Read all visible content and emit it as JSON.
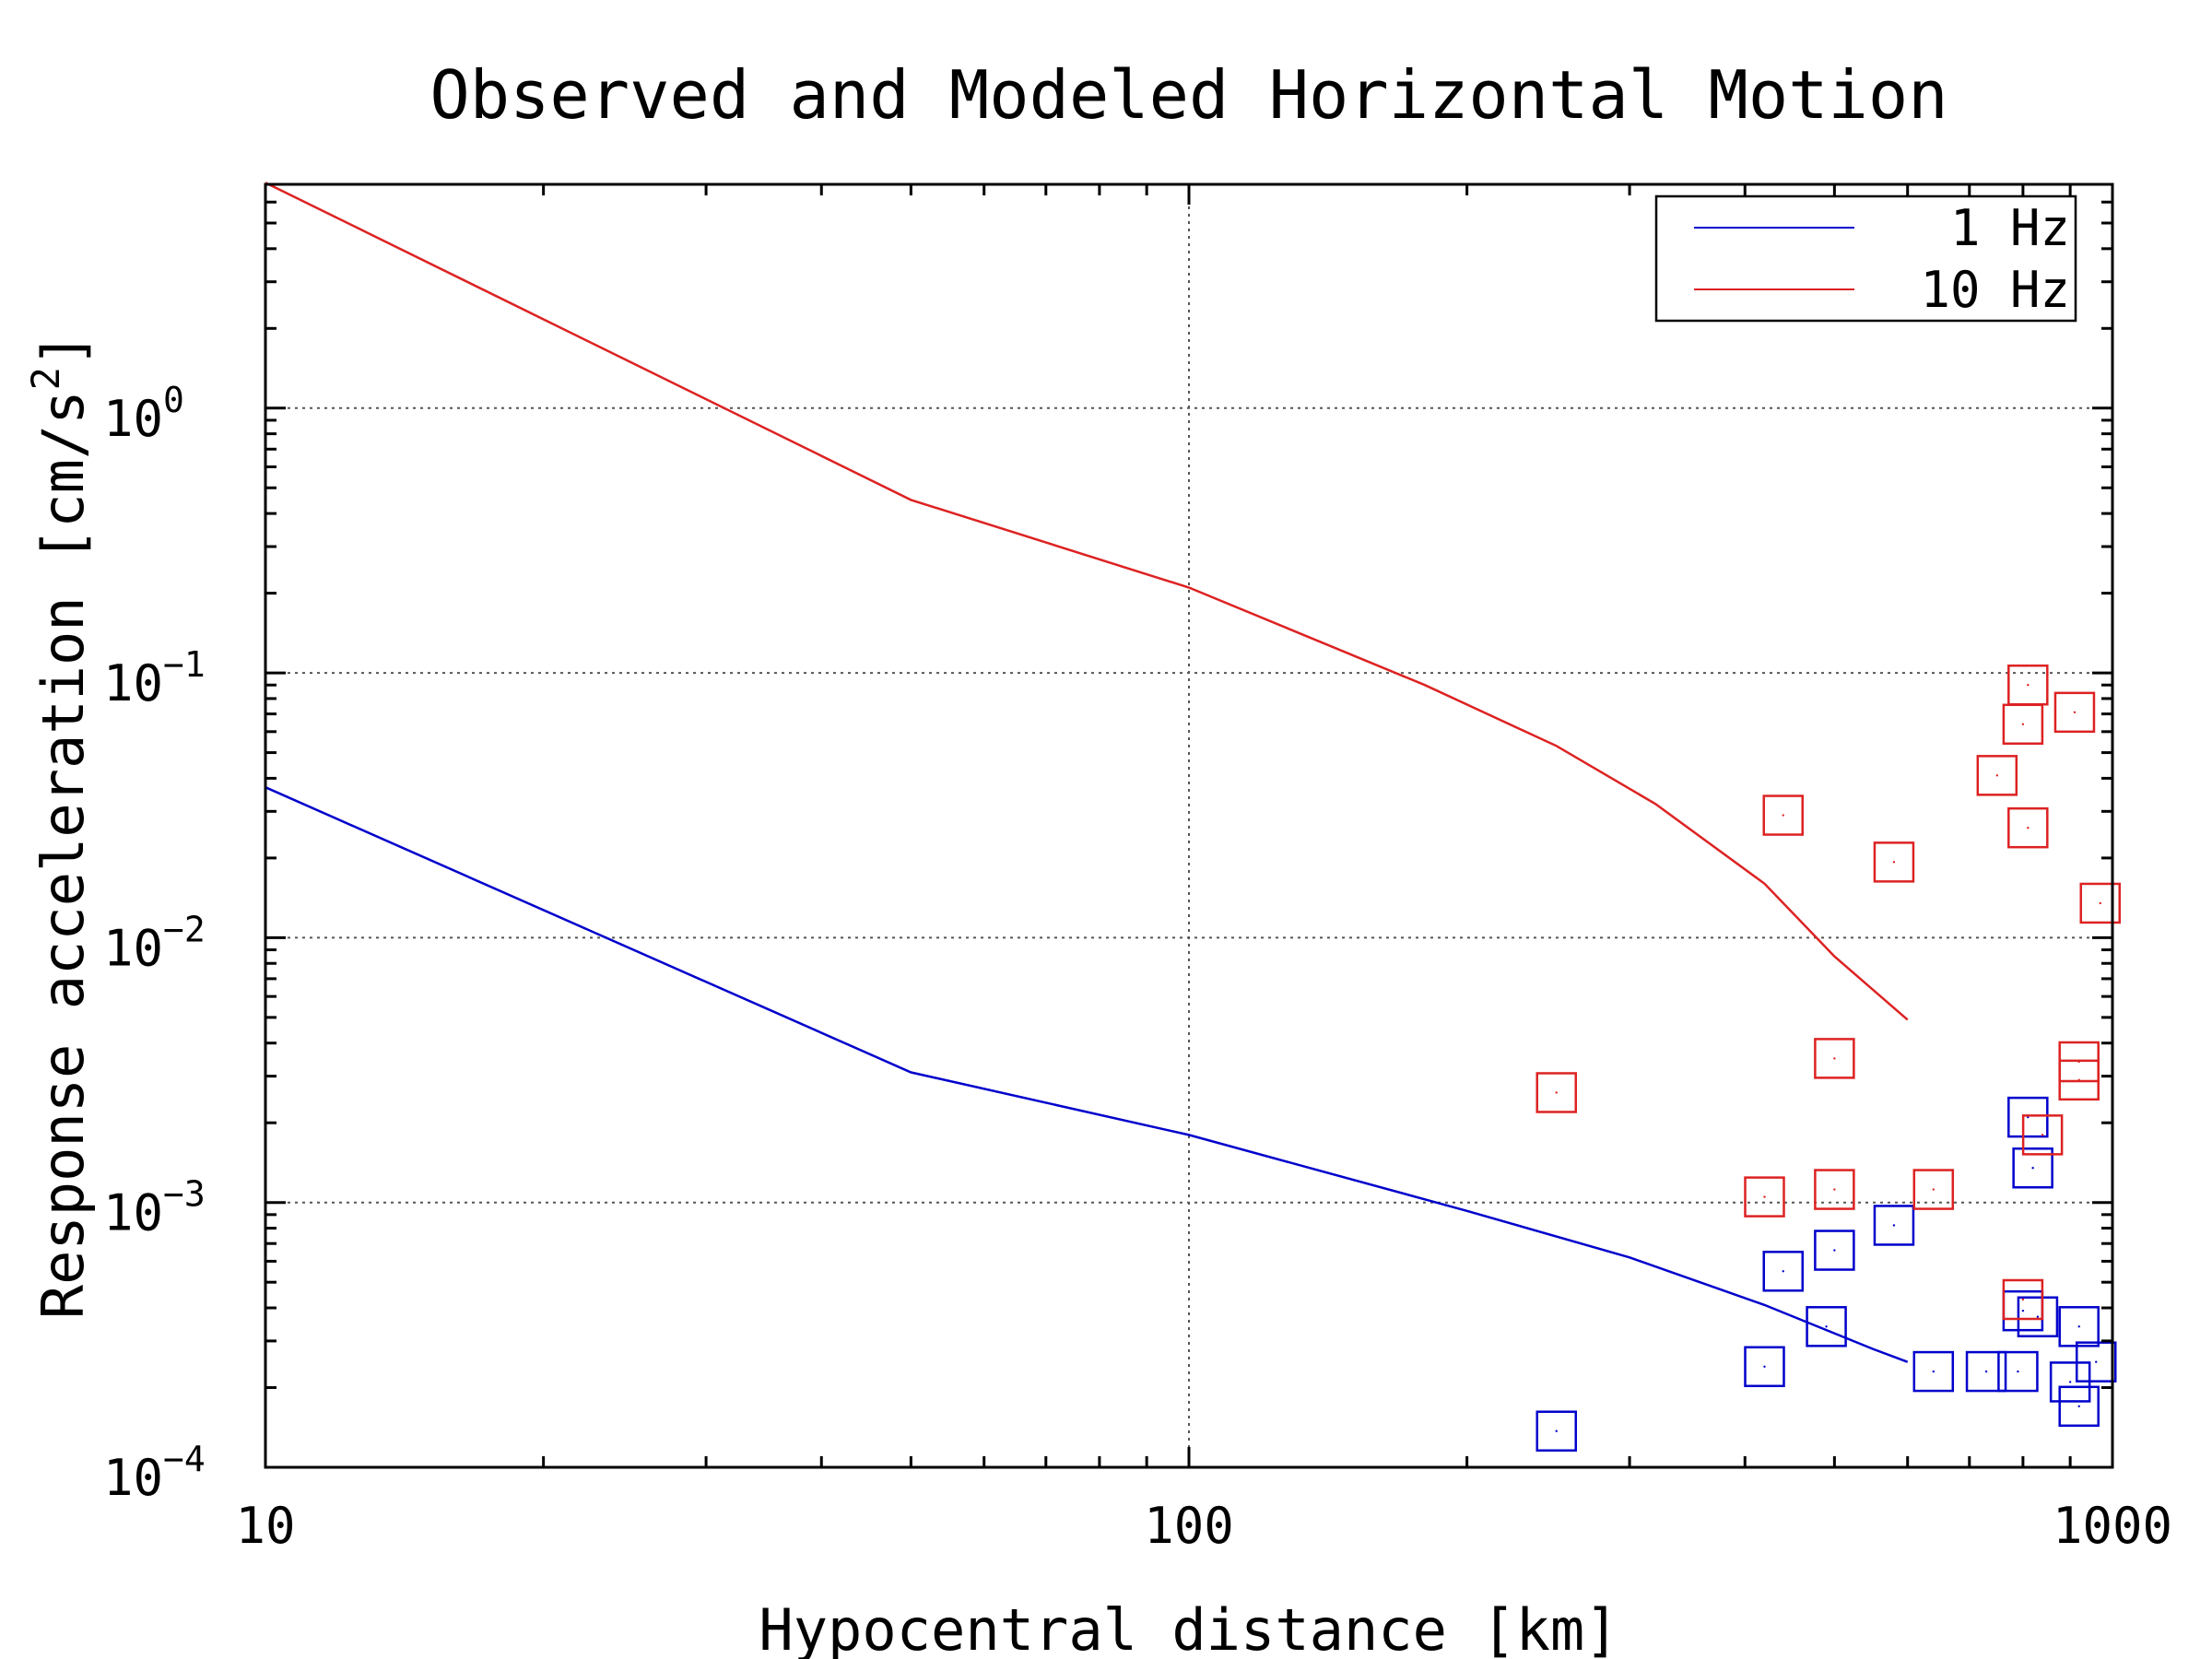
{
  "chart_data": {
    "type": "scatter",
    "title": "Observed and Modeled Horizontal Motion",
    "xlabel": "Hypocentral distance [km]",
    "ylabel_main": "Response acceleration [cm/s",
    "ylabel_sup": "2",
    "ylabel_end": "]",
    "x_scale": "log",
    "y_scale": "log",
    "xlim": [
      10,
      1000
    ],
    "ylim": [
      0.0001,
      7
    ],
    "grid": true,
    "legend_position": "top-right",
    "x_ticks": [
      {
        "value": 10,
        "label": "10"
      },
      {
        "value": 100,
        "label": "100"
      },
      {
        "value": 1000,
        "label": "1000"
      }
    ],
    "y_ticks": [
      {
        "value": 1,
        "base": "10",
        "exp": "0"
      },
      {
        "value": 0.1,
        "base": "10",
        "exp": "−1"
      },
      {
        "value": 0.01,
        "base": "10",
        "exp": "−2"
      },
      {
        "value": 0.001,
        "base": "10",
        "exp": "−3"
      },
      {
        "value": 0.0001,
        "base": "10",
        "exp": "−4"
      }
    ],
    "series": [
      {
        "name": "1 Hz",
        "color": "#0000cc",
        "model_curve": [
          [
            10,
            0.037
          ],
          [
            50,
            0.0031
          ],
          [
            100,
            0.0018
          ],
          [
            200,
            0.00093
          ],
          [
            300,
            0.00062
          ],
          [
            420,
            0.00041
          ],
          [
            550,
            0.00028
          ],
          [
            600,
            0.00025
          ]
        ],
        "observed": [
          [
            250,
            0.000137
          ],
          [
            420,
            0.00024
          ],
          [
            440,
            0.00055
          ],
          [
            490,
            0.00034
          ],
          [
            500,
            0.00066
          ],
          [
            580,
            0.00082
          ],
          [
            640,
            0.00023
          ],
          [
            730,
            0.00023
          ],
          [
            790,
            0.00023
          ],
          [
            810,
            0.0021
          ],
          [
            820,
            0.00135
          ],
          [
            830,
            0.00037
          ],
          [
            800,
            0.00039
          ],
          [
            900,
            0.00021
          ],
          [
            920,
            0.00017
          ],
          [
            920,
            0.00034
          ],
          [
            960,
            0.00025
          ]
        ]
      },
      {
        "name": "10 Hz",
        "color": "#dd2222",
        "model_curve": [
          [
            10,
            7.1
          ],
          [
            50,
            0.45
          ],
          [
            100,
            0.21
          ],
          [
            180,
            0.09
          ],
          [
            250,
            0.053
          ],
          [
            320,
            0.032
          ],
          [
            420,
            0.016
          ],
          [
            500,
            0.0085
          ],
          [
            600,
            0.0049
          ]
        ],
        "observed": [
          [
            250,
            0.0026
          ],
          [
            420,
            0.00105
          ],
          [
            440,
            0.029
          ],
          [
            500,
            0.0035
          ],
          [
            500,
            0.00112
          ],
          [
            580,
            0.0193
          ],
          [
            640,
            0.00112
          ],
          [
            750,
            0.041
          ],
          [
            810,
            0.09
          ],
          [
            800,
            0.064
          ],
          [
            810,
            0.026
          ],
          [
            840,
            0.0018
          ],
          [
            800,
            0.00043
          ],
          [
            910,
            0.071
          ],
          [
            920,
            0.0034
          ],
          [
            920,
            0.0029
          ],
          [
            970,
            0.0135
          ]
        ]
      }
    ]
  }
}
